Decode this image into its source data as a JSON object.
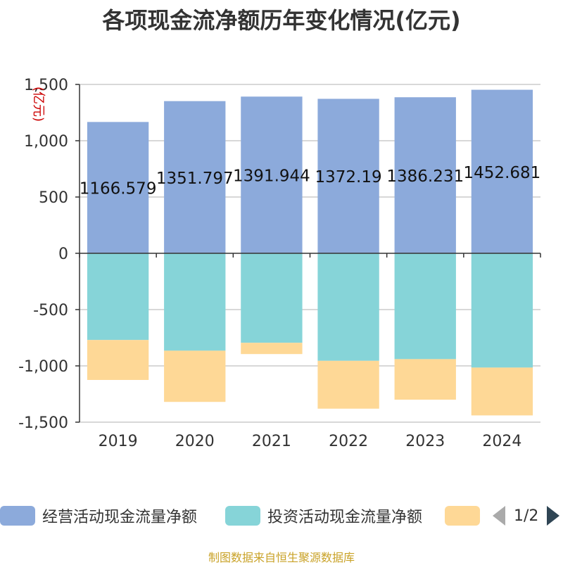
{
  "colors": {
    "operating": "#8caadb",
    "investing": "#86d4d8",
    "financing": "#fed896",
    "axis": "#333333",
    "grid": "#cccccc",
    "unit": "#cc0000"
  },
  "legend": {
    "items": [
      {
        "name": "经营活动现金流量净额",
        "color": "#8caadb"
      },
      {
        "name": "投资活动现金流量净额",
        "color": "#86d4d8"
      },
      {
        "name": "",
        "color": "#fed896"
      }
    ],
    "page": "1/2",
    "prev_icon": "triangle-left",
    "next_icon": "triangle-right"
  },
  "footer": "制图数据来自恒生聚源数据库",
  "chart_data": {
    "type": "bar",
    "stacked": true,
    "title": "各项现金流净额历年变化情况(亿元)",
    "ylabel": "(亿元)",
    "ylim": [
      -1500,
      1500
    ],
    "yticks": [
      1500,
      1000,
      500,
      0,
      -500,
      -1000,
      -1500
    ],
    "ytick_labels": [
      "1,500",
      "1,000",
      "500",
      "0",
      "-500",
      "-1,000",
      "-1,500"
    ],
    "categories": [
      "2019",
      "2020",
      "2021",
      "2022",
      "2023",
      "2024"
    ],
    "series": [
      {
        "name": "经营活动现金流量净额",
        "values": [
          1166.579,
          1351.797,
          1391.944,
          1372.19,
          1386.231,
          1452.681
        ],
        "labels": [
          "1166.579",
          "1351.797",
          "1391.944",
          "1372.19",
          "1386.231",
          "1452.681"
        ]
      },
      {
        "name": "投资活动现金流量净额",
        "values": [
          -770,
          -865,
          -795,
          -955,
          -940,
          -1015
        ]
      },
      {
        "name": "",
        "values": [
          -355,
          -455,
          -100,
          -425,
          -360,
          -425
        ]
      }
    ]
  }
}
